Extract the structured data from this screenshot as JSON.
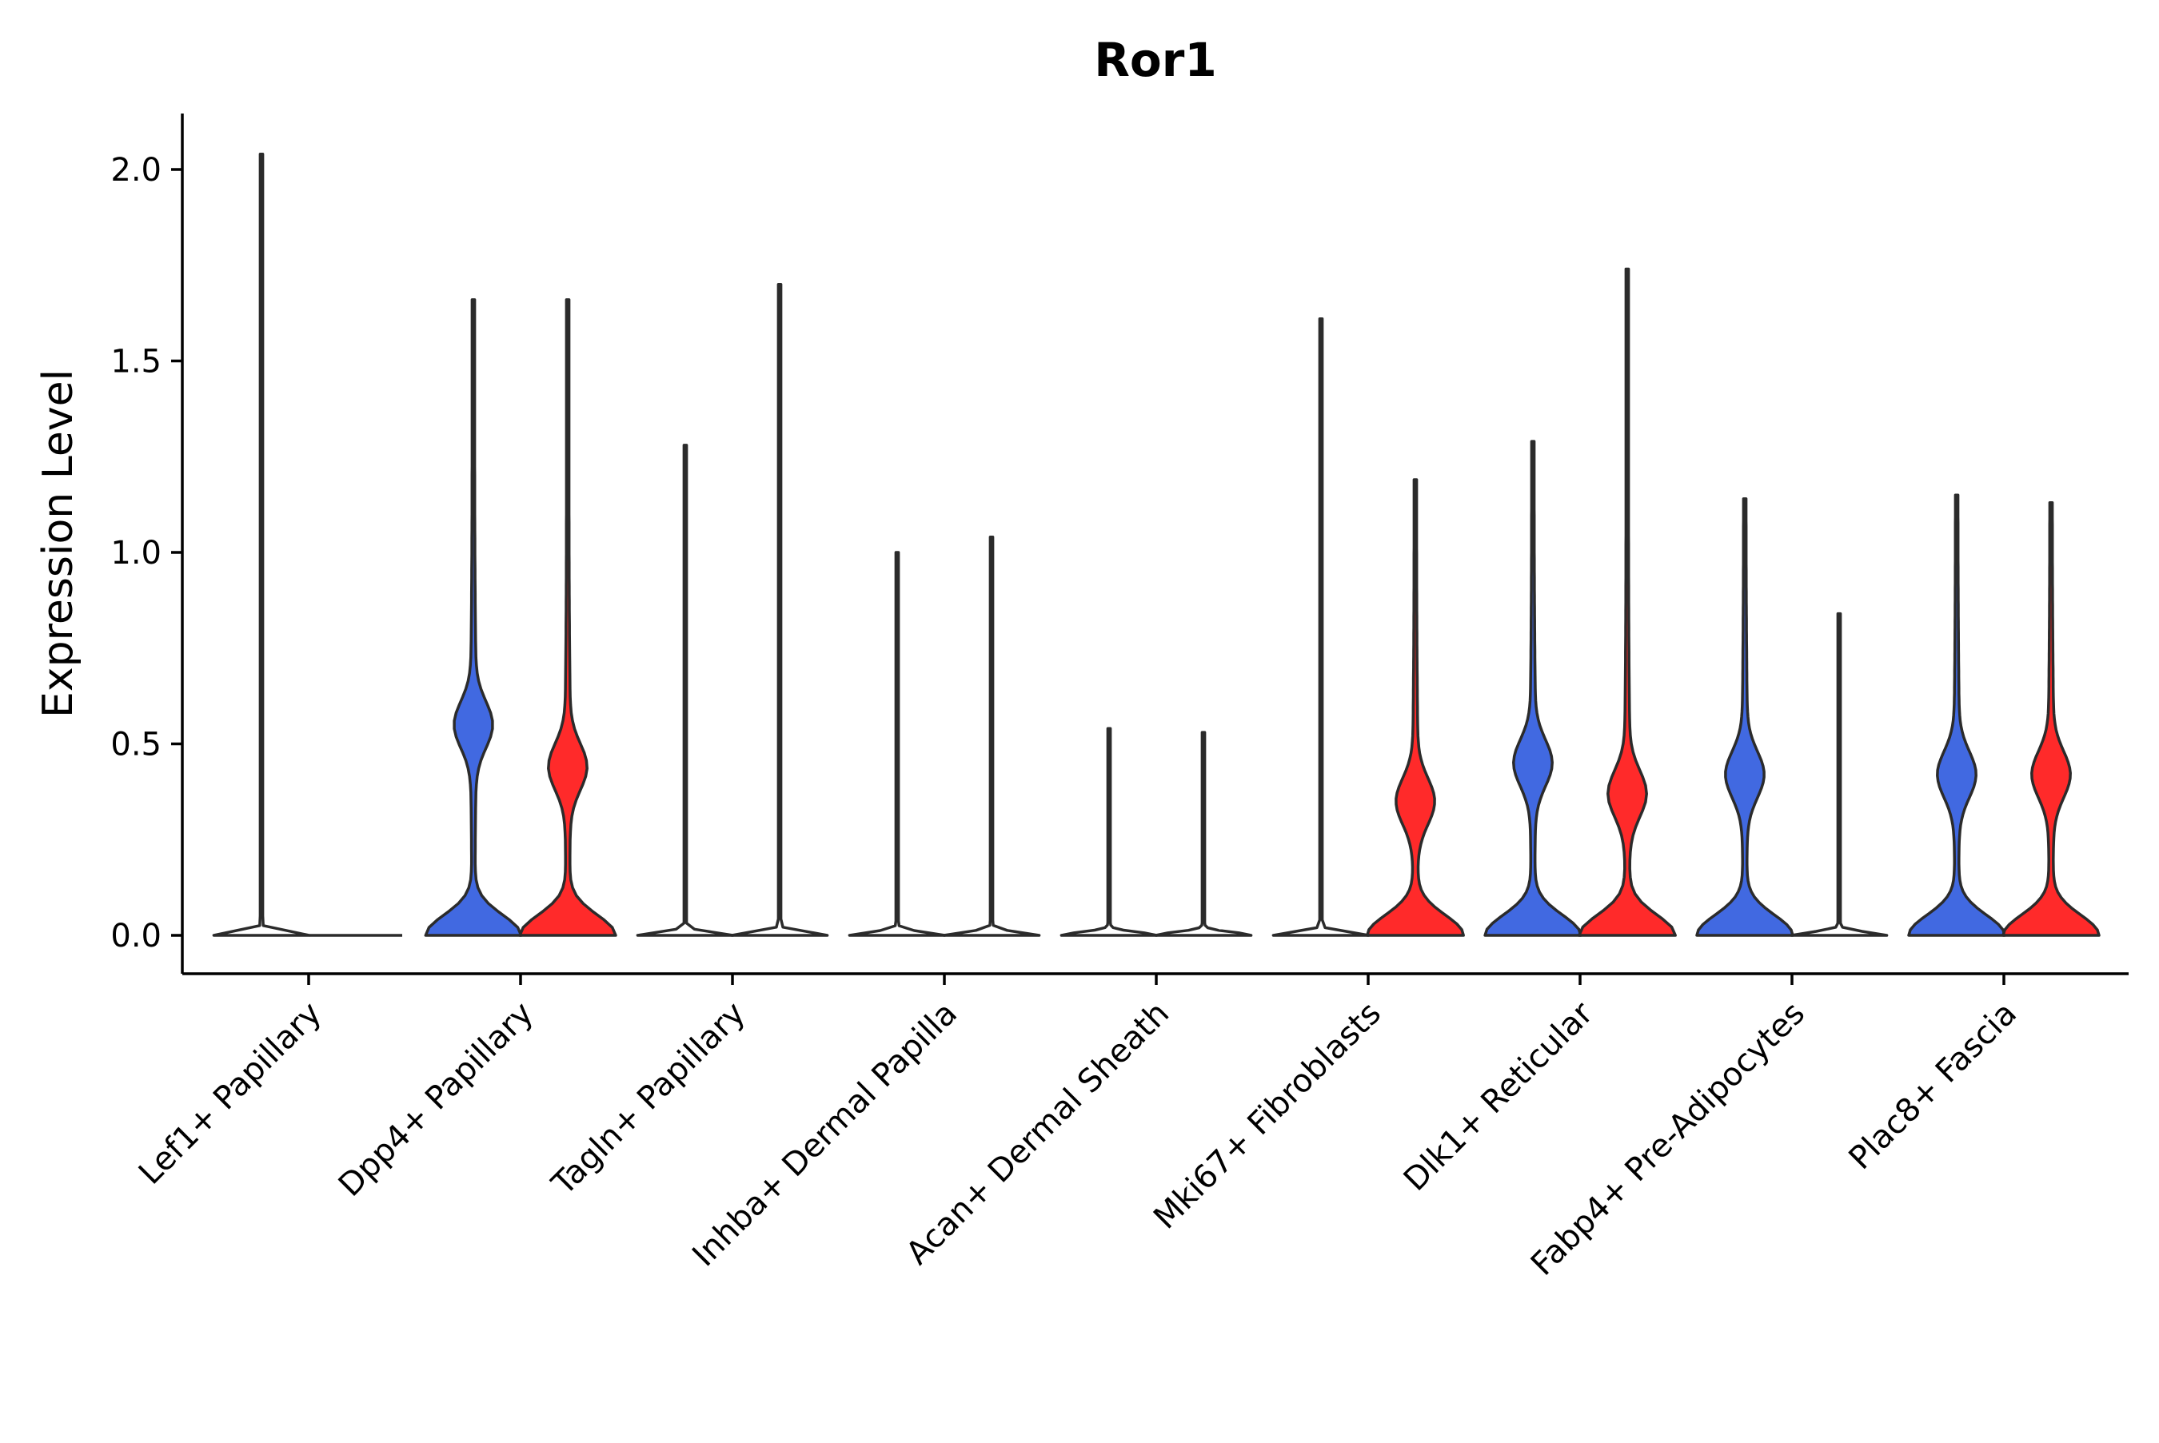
{
  "chart_data": {
    "type": "violin",
    "title": "Ror1",
    "xlabel": "",
    "ylabel": "Expression Level",
    "ylim": [
      -0.1,
      2.15
    ],
    "yticks": [
      "0.0",
      "0.5",
      "1.0",
      "1.5",
      "2.0"
    ],
    "grid": false,
    "legend": "none",
    "colors": {
      "group_a": "#4169E1",
      "group_b": "#FF2A2A",
      "outline": "#2b2b2b"
    },
    "categories": [
      "Lef1+ Papillary",
      "Dpp4+ Papillary",
      "Tagln+ Papillary",
      "Inhba+ Dermal Papilla",
      "Acan+ Dermal Sheath",
      "Mki67+ Fibroblasts",
      "Dlk1+ Reticular",
      "Fabp4+ Pre-Adipocytes",
      "Plac8+ Fascia"
    ],
    "series": [
      {
        "name": "group_a",
        "max_values": [
          2.04,
          1.66,
          1.28,
          1.0,
          0.54,
          1.61,
          1.29,
          1.14,
          1.15
        ]
      },
      {
        "name": "group_b",
        "max_values": [
          0.0,
          1.66,
          1.7,
          1.04,
          0.53,
          1.19,
          1.74,
          0.84,
          1.13
        ]
      }
    ],
    "filled": [
      [
        false,
        false
      ],
      [
        true,
        true
      ],
      [
        false,
        false
      ],
      [
        false,
        false
      ],
      [
        false,
        false
      ],
      [
        false,
        true
      ],
      [
        true,
        true
      ],
      [
        true,
        false
      ],
      [
        true,
        true
      ]
    ],
    "modes": [
      [
        null,
        null
      ],
      [
        0.55,
        0.44
      ],
      [
        null,
        null
      ],
      [
        null,
        null
      ],
      [
        null,
        null
      ],
      [
        null,
        0.35
      ],
      [
        0.45,
        0.37
      ],
      [
        0.42,
        null
      ],
      [
        0.42,
        0.42
      ]
    ]
  }
}
